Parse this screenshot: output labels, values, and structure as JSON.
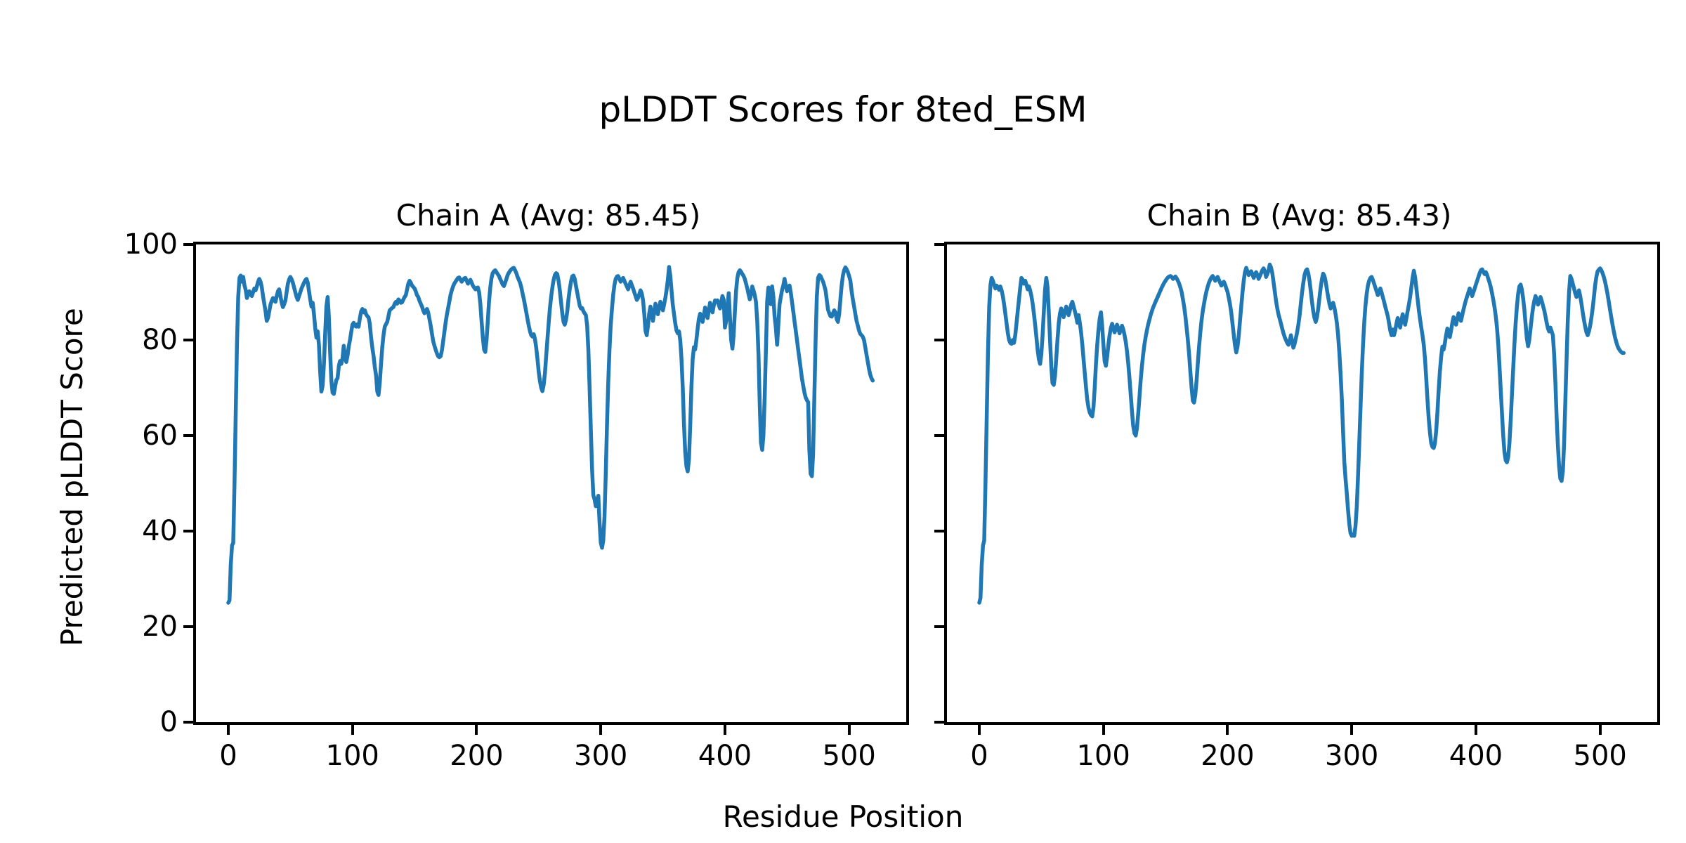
{
  "figure": {
    "suptitle": "pLDDT Scores for 8ted_ESM",
    "xlabel": "Residue Position",
    "ylabel": "Predicted pLDDT Score"
  },
  "chart_data": {
    "type": "line",
    "title": "pLDDT Scores for 8ted_ESM",
    "xlabel": "Residue Position",
    "ylabel": "Predicted pLDDT Score",
    "line_color": "#1f77b4",
    "background_color": "#ffffff",
    "grid": false,
    "legend": null,
    "xlim": [
      -26,
      546
    ],
    "ylim": [
      0,
      100
    ],
    "xticks": [
      0,
      100,
      200,
      300,
      400,
      500
    ],
    "yticks": [
      0,
      20,
      40,
      60,
      80,
      100
    ],
    "subplots": [
      {
        "title": "Chain A (Avg: 85.45)",
        "chain": "A",
        "avg": 85.45,
        "x_start": 0,
        "x_step": 1,
        "y": [
          25,
          25.5,
          33,
          37,
          37.5,
          50,
          65,
          79,
          89,
          93,
          93.5,
          92.2,
          93.2,
          91.5,
          90.5,
          88.8,
          89.6,
          90.2,
          89.5,
          89.2,
          90,
          90.8,
          90.4,
          91.2,
          92.2,
          92.8,
          92.2,
          91,
          89.2,
          87.6,
          86,
          84,
          84.6,
          86,
          87.4,
          88.2,
          88.8,
          88.3,
          88,
          89.2,
          90.2,
          90.6,
          89.2,
          87.8,
          86.9,
          87.5,
          88.3,
          90,
          91.8,
          92.7,
          93.2,
          92.7,
          92,
          91,
          90,
          89,
          88.4,
          89.2,
          90,
          90.8,
          91.4,
          92,
          92.5,
          92.8,
          92,
          90.3,
          88.5,
          87,
          87.8,
          85.5,
          82.5,
          80.5,
          81.8,
          79,
          73.5,
          69.2,
          70.5,
          75,
          81,
          87,
          89,
          85,
          77.5,
          71.5,
          69,
          68.7,
          70.2,
          71.6,
          72,
          74.5,
          75.6,
          75,
          76.2,
          78.8,
          76.4,
          75.4,
          76.6,
          78.6,
          80,
          81.6,
          83.2,
          83.6,
          83,
          82.8,
          83.3,
          82.8,
          84.6,
          86,
          86.5,
          85.8,
          86.2,
          85.4,
          85,
          84.7,
          83.4,
          80.6,
          78.4,
          76.6,
          74.4,
          72.6,
          69.2,
          68.5,
          71,
          75,
          78.4,
          81,
          82.8,
          83.3,
          83.8,
          85,
          86.2,
          86.5,
          86.7,
          86.9,
          87.6,
          88,
          87.6,
          88.5,
          88.2,
          87.8,
          87.9,
          88.5,
          89,
          89.4,
          90.6,
          91.8,
          92.4,
          92,
          91.4,
          91.1,
          90.8,
          90.2,
          89.4,
          89,
          88.2,
          87.6,
          87,
          86.2,
          85.6,
          86,
          86.5,
          85.8,
          84.4,
          83,
          81.4,
          79.8,
          78.8,
          78,
          77.2,
          76.6,
          76.4,
          76.6,
          77.8,
          79.6,
          81.6,
          83.6,
          85.2,
          86.6,
          88,
          89.4,
          90.4,
          91.2,
          91.8,
          92.2,
          92.6,
          93,
          93.1,
          92.6,
          92.2,
          92.6,
          92.9,
          93,
          92.4,
          91.8,
          92.2,
          92.6,
          92,
          91.4,
          91,
          90.6,
          90.9,
          91,
          90,
          87.5,
          84,
          80.5,
          78,
          77.5,
          80,
          84,
          88,
          91,
          93,
          94,
          94.4,
          94.6,
          94.2,
          93.8,
          93.4,
          92.8,
          92.2,
          91.6,
          91.3,
          92,
          92.8,
          93.6,
          94.1,
          94.5,
          94.8,
          95,
          95.1,
          94.6,
          94,
          93.2,
          92.6,
          92,
          91,
          89.8,
          88.6,
          87.2,
          85.8,
          84.4,
          83,
          81.8,
          81,
          80.7,
          81.2,
          80.2,
          78.4,
          76,
          73.4,
          71.4,
          70,
          69.3,
          70.6,
          73,
          76.5,
          80,
          83.5,
          86.5,
          89,
          91,
          92.5,
          93.6,
          94,
          93.8,
          92.4,
          90.4,
          88,
          85.6,
          83.8,
          83.2,
          84.2,
          86,
          88.5,
          90.6,
          92.2,
          93.3,
          93.5,
          92.8,
          91.4,
          90,
          88.6,
          87.2,
          86.6,
          86.7,
          86,
          85.6,
          85.2,
          83,
          78,
          70,
          61,
          53,
          47.5,
          46.6,
          45.2,
          46.2,
          47.4,
          42,
          37.6,
          36.5,
          38,
          43,
          52,
          62,
          71,
          78,
          83,
          86.5,
          89.5,
          91.5,
          92.8,
          93.3,
          93.4,
          92.8,
          92.2,
          92.6,
          93,
          92.4,
          91.8,
          91.2,
          90.6,
          91.4,
          92.2,
          91.5,
          90.8,
          90,
          89.2,
          88.4,
          88.8,
          89.6,
          90.4,
          89.8,
          88.4,
          85.5,
          82,
          81,
          83,
          85.5,
          87,
          85.4,
          84,
          85.8,
          87.6,
          86.8,
          85.4,
          86.8,
          88,
          87.2,
          86.2,
          87.4,
          88.8,
          90.5,
          92.5,
          95.3,
          93.4,
          90.4,
          87.4,
          85.4,
          83.5,
          82,
          81.4,
          81.8,
          80,
          76,
          70,
          62.5,
          56.5,
          53.5,
          52.5,
          55,
          62,
          70,
          76,
          78.5,
          78,
          80,
          82.4,
          84.4,
          85.5,
          85,
          83.8,
          85.2,
          86.8,
          85.8,
          84.6,
          86.2,
          87.8,
          86.8,
          85.8,
          87.2,
          88.3,
          88,
          88.3,
          87.4,
          86.6,
          87.9,
          89.2,
          88.4,
          82.6,
          84,
          87,
          89.8,
          85,
          80,
          78.2,
          81,
          86,
          90.5,
          93,
          94.2,
          94.6,
          94.3,
          93.8,
          93.4,
          92.8,
          91.8,
          90.8,
          89.6,
          88.5,
          89.5,
          91.2,
          90.4,
          89.4,
          88,
          84,
          77,
          67,
          58.5,
          57,
          60,
          68,
          78,
          88,
          91,
          89.4,
          87.5,
          91.2,
          89,
          85,
          82.6,
          79,
          83,
          87.5,
          89,
          90.5,
          91.4,
          92.8,
          91.4,
          90.2,
          91,
          91.4,
          90,
          88,
          86,
          84,
          82,
          80,
          78,
          76,
          74,
          72,
          70.5,
          69,
          68,
          67.4,
          67,
          57,
          52,
          51.5,
          56,
          68,
          80,
          89,
          93,
          93.6,
          93.4,
          92.8,
          92.2,
          91.4,
          90.4,
          88.4,
          86.4,
          85.6,
          85,
          84.9,
          85.6,
          86.2,
          85.8,
          84.4,
          83.8,
          85.5,
          88.5,
          91.5,
          93.5,
          94.6,
          95.2,
          94.8,
          94.2,
          93.4,
          92.4,
          90.3,
          88.5,
          87,
          85.5,
          84,
          83,
          82,
          81.3,
          81,
          80.7,
          80,
          78.5,
          77,
          75.5,
          74,
          72.8,
          72,
          71.5
        ]
      },
      {
        "title": "Chain B (Avg: 85.43)",
        "chain": "B",
        "avg": 85.43,
        "x_start": 0,
        "x_step": 1,
        "y": [
          25,
          26,
          33,
          37,
          38,
          50,
          64,
          77,
          87,
          91.5,
          93,
          92.4,
          91.5,
          90.8,
          91.4,
          91,
          90.5,
          91.2,
          90.4,
          89.2,
          87.5,
          85.5,
          83.5,
          81.5,
          80,
          79.4,
          79.2,
          80,
          79.4,
          81,
          83.5,
          86,
          88.5,
          91,
          93,
          92.6,
          91.8,
          92.4,
          91.6,
          90.6,
          91.2,
          90.4,
          89.2,
          87.6,
          85.6,
          83.2,
          80.6,
          78,
          76,
          75,
          77,
          81,
          86,
          90.5,
          93,
          91,
          86,
          80,
          74.5,
          71,
          70.6,
          72.5,
          76,
          80,
          83.5,
          85.5,
          86.6,
          85.8,
          84.8,
          85.8,
          87,
          86.2,
          85.2,
          86.2,
          87.4,
          88,
          87,
          86,
          85,
          83.6,
          85.2,
          83.6,
          81.6,
          79,
          76,
          73,
          70,
          67.5,
          65.8,
          64.8,
          64.3,
          64,
          66,
          70,
          75,
          79,
          82,
          84.5,
          85.8,
          83,
          79,
          75.5,
          74.6,
          76.5,
          79,
          81,
          82.5,
          83.4,
          82.6,
          81.6,
          82.4,
          83.2,
          82.4,
          81.4,
          82.2,
          83,
          82.2,
          81,
          79.6,
          77.6,
          75,
          72,
          68.5,
          65,
          62,
          60.5,
          60,
          61.5,
          64.5,
          68,
          71.5,
          74.5,
          77,
          79,
          80.6,
          82,
          83.2,
          84.2,
          85.2,
          86,
          86.8,
          87.4,
          88,
          88.6,
          89.2,
          89.8,
          90.4,
          91,
          91.5,
          92,
          92.4,
          92.8,
          93.1,
          93.3,
          93.4,
          93.2,
          92.8,
          93,
          93.3,
          92.9,
          92.4,
          91.8,
          91,
          90,
          88.6,
          87,
          85,
          82.6,
          80,
          77,
          73.5,
          70,
          67.3,
          66.9,
          68.5,
          71.5,
          75,
          78.5,
          81.5,
          84,
          86,
          87.6,
          89,
          90.2,
          91.2,
          92,
          92.6,
          93.1,
          93.4,
          93,
          92.4,
          92.8,
          93.2,
          92.6,
          92,
          91.4,
          91.8,
          92.2,
          91.6,
          90.8,
          90,
          88.8,
          87.4,
          85.6,
          83.4,
          81,
          78.8,
          77.4,
          78.6,
          81,
          84,
          87,
          90,
          92.4,
          94.2,
          95.1,
          94.4,
          93.6,
          94,
          94.4,
          93.8,
          93,
          93.6,
          94.2,
          93.6,
          92.8,
          93.4,
          94,
          94.6,
          95,
          94.4,
          93.2,
          93.8,
          94.6,
          95.8,
          95.2,
          94,
          92.2,
          90.2,
          88.2,
          86.6,
          85.4,
          84.4,
          83.4,
          82.4,
          81.4,
          80.6,
          80,
          79.4,
          79,
          79.8,
          81,
          79.6,
          78.4,
          79.2,
          80.4,
          81.6,
          83.2,
          85.2,
          87.6,
          90,
          92,
          93.6,
          94.5,
          94.8,
          94,
          92.4,
          90.2,
          88,
          86,
          84.6,
          83.8,
          84.8,
          86.6,
          88.8,
          91,
          92.8,
          93.9,
          93.4,
          92.2,
          90.6,
          89,
          87.6,
          86.6,
          87.2,
          87.8,
          86.8,
          85.4,
          83.6,
          81,
          77.5,
          73,
          67.5,
          61,
          54.5,
          50.9,
          48,
          44.5,
          41.5,
          39.6,
          39,
          39.3,
          39,
          41,
          45,
          51,
          58,
          65.5,
          72.5,
          78.5,
          83.5,
          87,
          89.6,
          91.4,
          92.4,
          93,
          93.2,
          92.6,
          91.8,
          91,
          90.2,
          89.4,
          90,
          90.8,
          90,
          89,
          88,
          87,
          86,
          85,
          83.6,
          82,
          81,
          82.2,
          81,
          82,
          83.4,
          84.6,
          83.6,
          82.6,
          84,
          85.4,
          84.4,
          83.2,
          84.6,
          86,
          87.4,
          89,
          91,
          93,
          94.5,
          93.2,
          91,
          88.6,
          86.4,
          84.4,
          82.6,
          81,
          79,
          76,
          72,
          67.5,
          63.5,
          60.5,
          58.4,
          57.6,
          57.4,
          58.4,
          61,
          65,
          69.5,
          73.5,
          76.5,
          78.6,
          78,
          79.4,
          81,
          82.4,
          81.6,
          80.6,
          82,
          83.6,
          84.8,
          84,
          83.2,
          84.4,
          85.6,
          84.8,
          84,
          85.2,
          86.4,
          87.4,
          88.4,
          89.2,
          90,
          90.8,
          90,
          89.2,
          90,
          90.8,
          91.6,
          92.4,
          93.2,
          94,
          94.6,
          94.8,
          94.3,
          93.8,
          94.2,
          93.6,
          92.8,
          92,
          91,
          89.8,
          88.4,
          86.8,
          85,
          82.5,
          79,
          74.5,
          69.5,
          64.5,
          60,
          56.5,
          54.8,
          54.4,
          55.5,
          58.5,
          63,
          68.5,
          74,
          79,
          83.5,
          87,
          89.6,
          91.2,
          91.6,
          90.6,
          88.8,
          86.4,
          83.4,
          80.4,
          78.7,
          80,
          82.4,
          84.8,
          86.8,
          88.2,
          89.2,
          88.4,
          87.4,
          88.2,
          89,
          88.2,
          87.2,
          86.2,
          85,
          83.6,
          82.4,
          81.8,
          82.6,
          81.8,
          81,
          77,
          71,
          64,
          58,
          53.5,
          51,
          50.5,
          52.5,
          58,
          67,
          76,
          84,
          90,
          93.4,
          92.8,
          91.8,
          90.8,
          89.8,
          89,
          89.8,
          90.4,
          89.2,
          87.6,
          85.8,
          84.2,
          82.8,
          81.6,
          81,
          81.8,
          83,
          84.6,
          86.6,
          89,
          91.4,
          93.2,
          94.4,
          94.7,
          95,
          94.6,
          94,
          93.2,
          92.2,
          91,
          89.6,
          88,
          86.4,
          84.8,
          83.2,
          81.9,
          80.6,
          79.6,
          78.8,
          78.2,
          77.8,
          77.5,
          77.3,
          77.3
        ]
      }
    ]
  }
}
